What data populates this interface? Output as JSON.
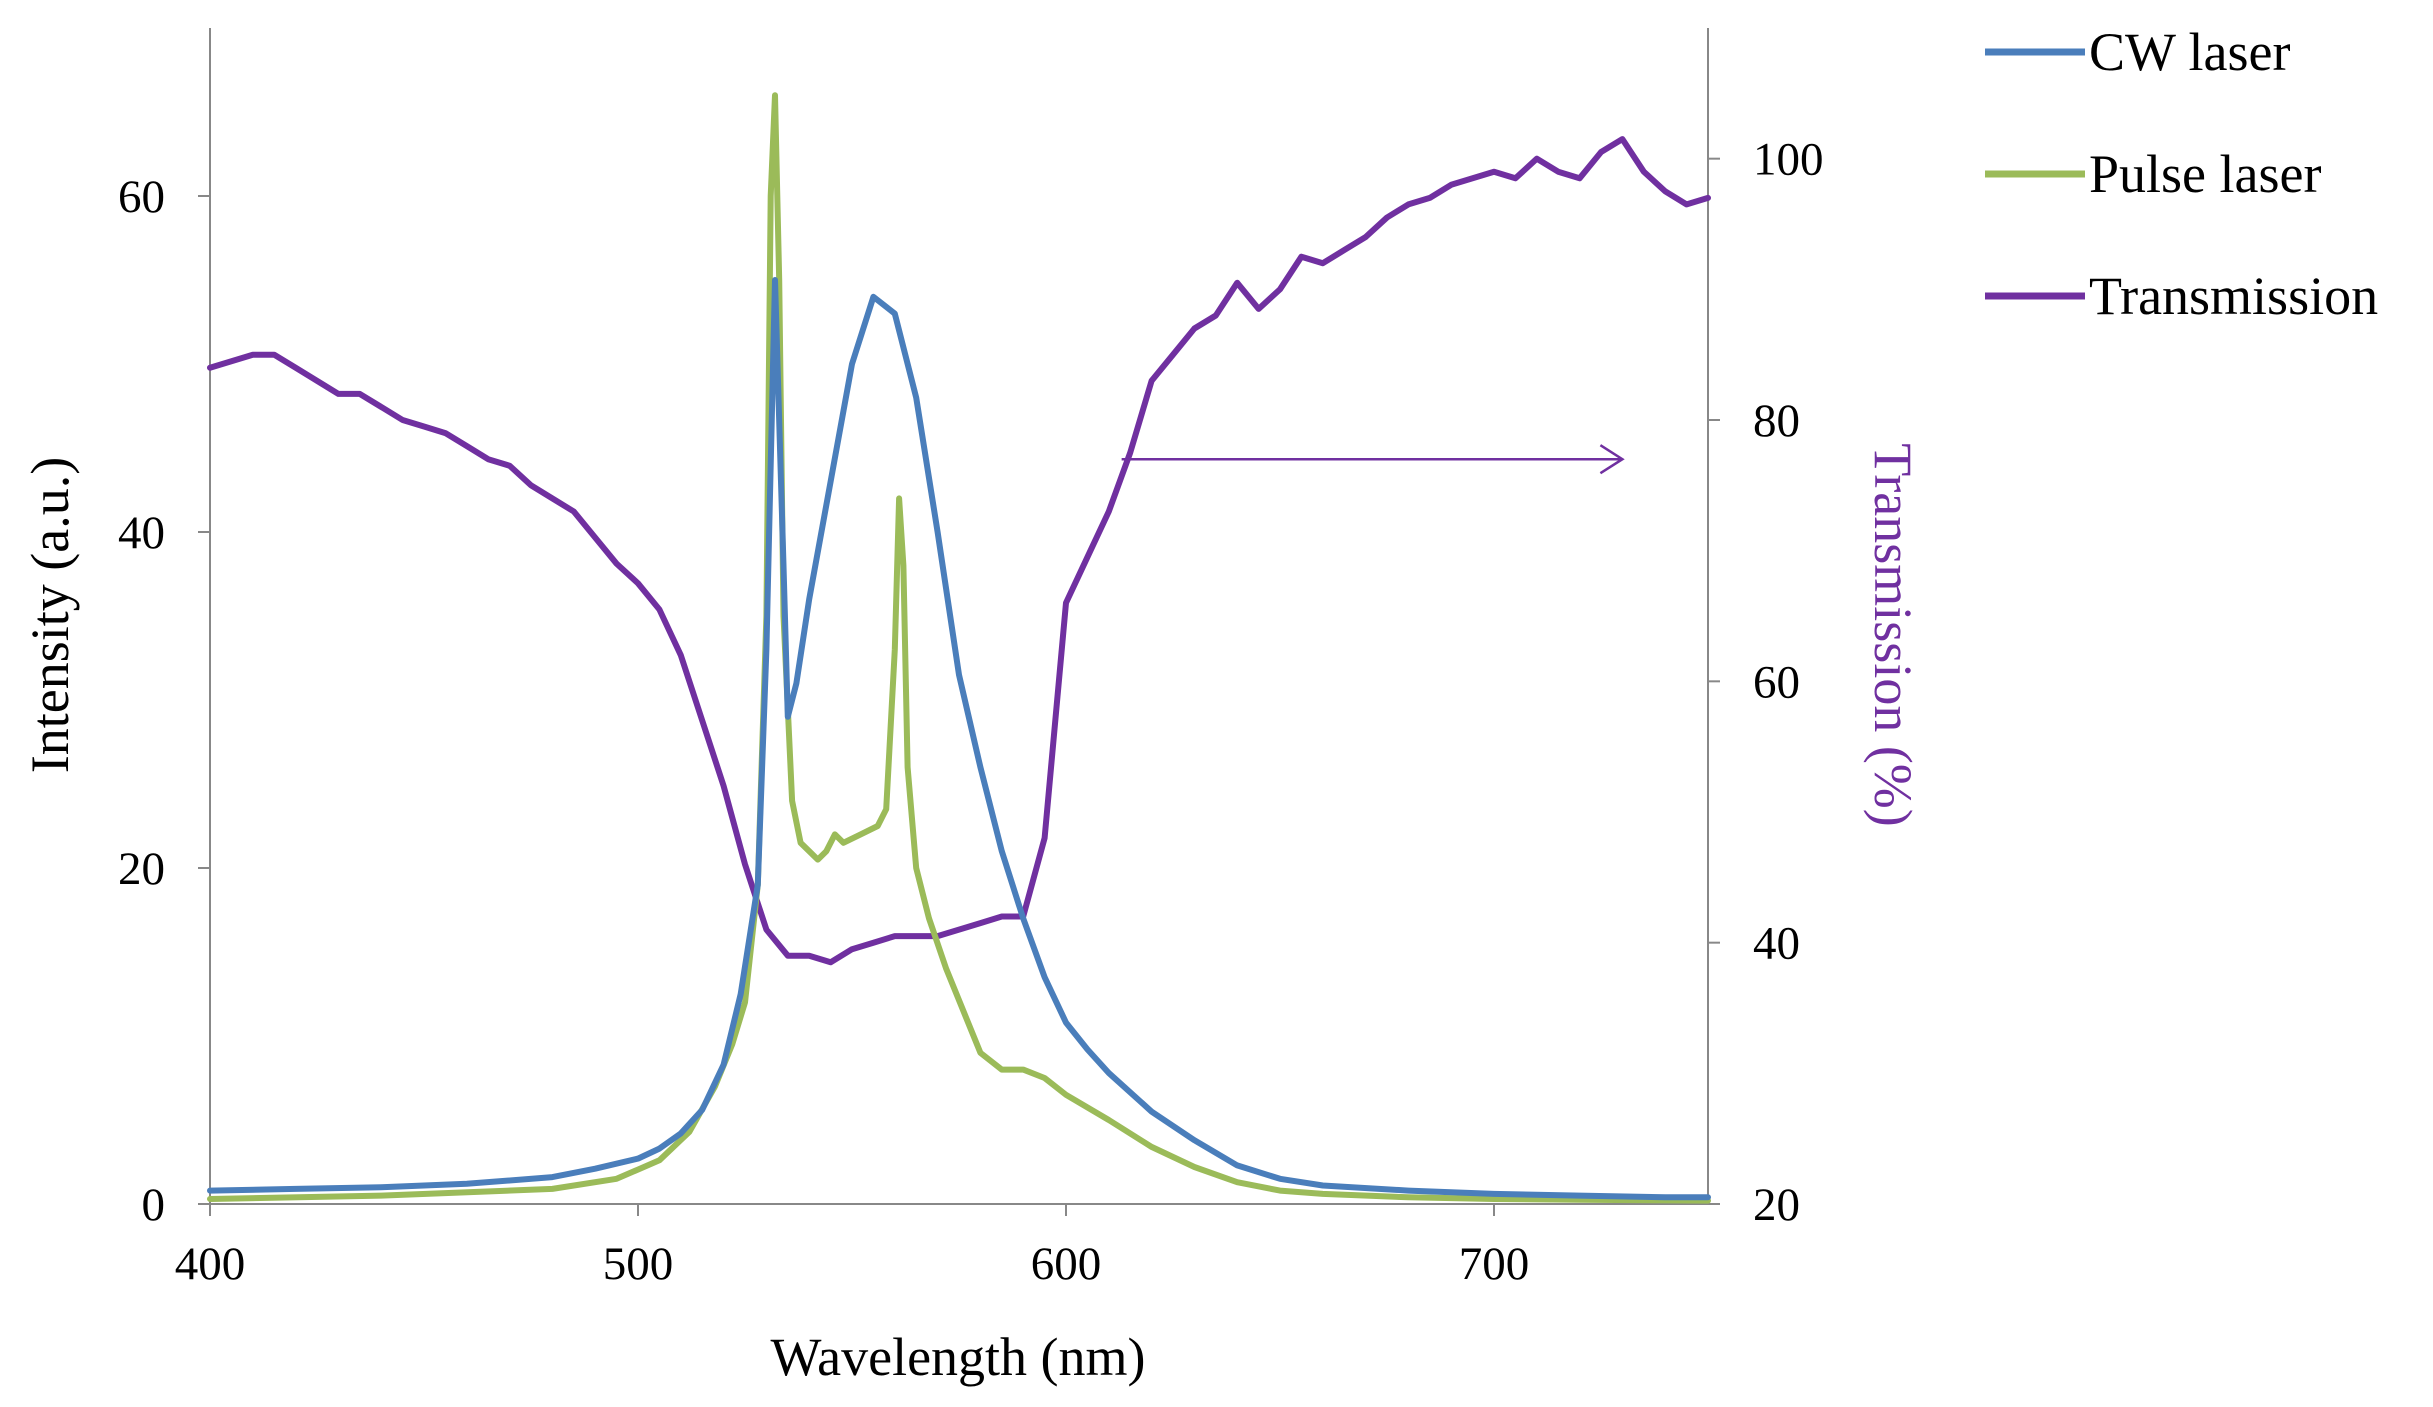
{
  "chart_data": {
    "type": "line",
    "title": "",
    "xlabel": "Wavelength  (nm)",
    "ylabel_left": "Intensity (a.u.)",
    "ylabel_right": "Transmission (%)",
    "xlim": [
      400,
      750
    ],
    "ylim_left": [
      0,
      70
    ],
    "ylim_right": [
      20,
      110
    ],
    "x_ticks": [
      "400",
      "500",
      "600",
      "700"
    ],
    "x_tick_values": [
      400,
      500,
      600,
      700
    ],
    "y_ticks_left": [
      "0",
      "20",
      "40",
      "60"
    ],
    "y_tick_values_left": [
      0,
      20,
      40,
      60
    ],
    "y_ticks_right": [
      "20",
      "40",
      "60",
      "80",
      "100"
    ],
    "y_tick_values_right": [
      20,
      40,
      60,
      80,
      100
    ],
    "grid": false,
    "legend_position": "top-right outside",
    "arrow": {
      "from": [
        613,
        77
      ],
      "to": [
        730,
        77
      ],
      "axis": "right",
      "color": "#7030A0"
    },
    "series": [
      {
        "name": "CW laser",
        "axis": "left",
        "color": "#4A7EBB",
        "x": [
          400,
          420,
          440,
          460,
          480,
          490,
          500,
          505,
          510,
          515,
          520,
          524,
          528,
          530,
          532,
          534,
          535,
          537,
          540,
          545,
          550,
          555,
          560,
          565,
          570,
          575,
          580,
          585,
          590,
          595,
          600,
          605,
          610,
          620,
          630,
          640,
          650,
          660,
          680,
          700,
          720,
          740,
          750
        ],
        "y": [
          0.8,
          0.9,
          1.0,
          1.2,
          1.6,
          2.1,
          2.7,
          3.3,
          4.2,
          5.6,
          8.3,
          12.5,
          19.0,
          33.0,
          55.0,
          38.0,
          29.0,
          31.0,
          36.0,
          43.0,
          50.0,
          54.0,
          53.0,
          48.0,
          40.0,
          31.5,
          26.0,
          21.0,
          17.0,
          13.5,
          10.8,
          9.2,
          7.8,
          5.5,
          3.8,
          2.3,
          1.5,
          1.1,
          0.8,
          0.6,
          0.5,
          0.4,
          0.4
        ]
      },
      {
        "name": "Pulse laser",
        "axis": "left",
        "color": "#9BBB59",
        "x": [
          400,
          440,
          480,
          495,
          505,
          512,
          518,
          522,
          525,
          528,
          530,
          531,
          532,
          533,
          534,
          536,
          538,
          540,
          542,
          544,
          546,
          548,
          552,
          556,
          558,
          560,
          561,
          562,
          563,
          565,
          568,
          572,
          576,
          580,
          585,
          590,
          595,
          600,
          610,
          620,
          630,
          640,
          650,
          660,
          680,
          700,
          720,
          750
        ],
        "y": [
          0.3,
          0.5,
          0.9,
          1.5,
          2.6,
          4.3,
          7.0,
          9.5,
          12.0,
          19.0,
          35.0,
          60.0,
          66.0,
          55.0,
          35.0,
          24.0,
          21.5,
          21.0,
          20.5,
          21.0,
          22.0,
          21.5,
          22.0,
          22.5,
          23.5,
          33.0,
          42.0,
          38.0,
          26.0,
          20.0,
          17.0,
          14.0,
          11.5,
          9.0,
          8.0,
          8.0,
          7.5,
          6.5,
          5.0,
          3.4,
          2.2,
          1.3,
          0.8,
          0.6,
          0.4,
          0.3,
          0.25,
          0.2
        ]
      },
      {
        "name": "Transmission",
        "axis": "right",
        "color": "#7030A0",
        "x": [
          400,
          405,
          410,
          415,
          420,
          425,
          430,
          435,
          440,
          445,
          450,
          455,
          460,
          465,
          470,
          475,
          480,
          485,
          490,
          495,
          500,
          505,
          510,
          515,
          520,
          525,
          530,
          535,
          540,
          545,
          550,
          555,
          560,
          565,
          570,
          575,
          580,
          585,
          590,
          595,
          600,
          605,
          610,
          615,
          620,
          625,
          630,
          635,
          640,
          645,
          650,
          655,
          660,
          665,
          670,
          675,
          680,
          685,
          690,
          695,
          700,
          705,
          710,
          715,
          720,
          725,
          730,
          735,
          740,
          745,
          750
        ],
        "y": [
          84,
          84.5,
          85,
          85,
          84,
          83,
          82,
          82,
          81,
          80,
          79.5,
          79,
          78,
          77,
          76.5,
          75,
          74,
          73,
          71,
          69,
          67.5,
          65.5,
          62,
          57,
          52,
          46,
          41,
          39,
          39,
          38.5,
          39.5,
          40,
          40.5,
          40.5,
          40.5,
          41,
          41.5,
          42,
          42,
          48,
          66,
          69.5,
          73,
          77.5,
          83,
          85,
          87,
          88,
          90.5,
          88.5,
          90,
          92.5,
          92,
          93,
          94,
          95.5,
          96.5,
          97,
          98,
          98.5,
          99,
          98.5,
          100,
          99,
          98.5,
          100.5,
          101.5,
          99,
          97.5,
          96.5,
          97
        ]
      }
    ]
  }
}
